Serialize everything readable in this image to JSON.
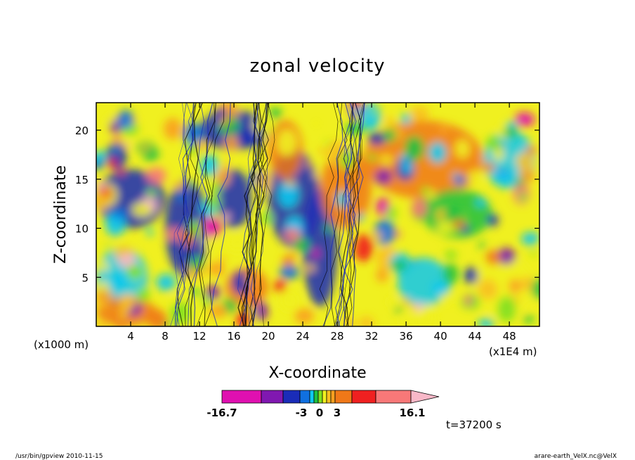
{
  "chart_data": {
    "type": "heatmap",
    "title": "zonal velocity",
    "xlabel": "X-coordinate",
    "ylabel": "Z-coordinate",
    "x_unit_left": "(x1000 m)",
    "x_unit_right": "(x1E4 m)",
    "xlim": [
      0,
      51.5
    ],
    "ylim": [
      0,
      22.8
    ],
    "x_ticks": [
      4,
      8,
      12,
      16,
      20,
      24,
      28,
      32,
      36,
      40,
      44,
      48
    ],
    "y_ticks": [
      5,
      10,
      15,
      20
    ],
    "colorbar": {
      "min_label": "-16.7",
      "labels": [
        "-3",
        "0",
        "3"
      ],
      "max_label": "16.1",
      "levels": [
        -16.7,
        -3,
        0,
        3,
        16.1
      ],
      "colors": [
        "#e010b0",
        "#8018b0",
        "#1a2cb8",
        "#1070e0",
        "#10c8f0",
        "#20c040",
        "#80e020",
        "#f0f020",
        "#f8c020",
        "#f8a020",
        "#f07818",
        "#f02020",
        "#f87878",
        "#f8b8c8"
      ]
    },
    "annotation": "t=37200 s"
  },
  "footer": {
    "left": "/usr/bin/gpview   2010-11-15",
    "right": "arare-earth_VelX.nc@VelX"
  }
}
